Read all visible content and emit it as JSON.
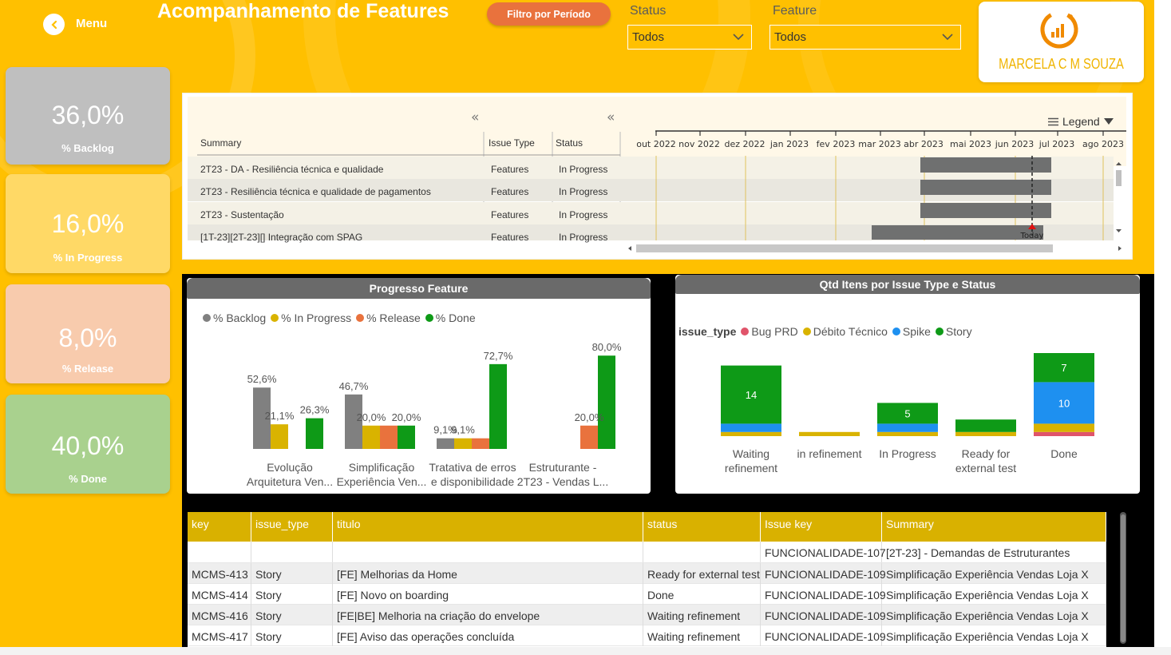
{
  "header": {
    "menu_label": "Menu",
    "title": "Acompanhamento de Features",
    "filter_button": "Filtro por Período",
    "slicers": [
      {
        "label": "Status",
        "value": "Todos"
      },
      {
        "label": "Feature",
        "value": "Todos"
      }
    ],
    "logo_text": "MARCELA C M SOUZA"
  },
  "kpis": [
    {
      "value": "36,0%",
      "label": "% Backlog",
      "color": "#BFBFBF"
    },
    {
      "value": "16,0%",
      "label": "% In Progress",
      "color": "#FFD966"
    },
    {
      "value": "8,0%",
      "label": "% Release",
      "color": "#F8CBAD"
    },
    {
      "value": "40,0%",
      "label": "% Done",
      "color": "#A9D18E"
    }
  ],
  "gantt": {
    "columns": [
      "Summary",
      "Issue Type",
      "Status"
    ],
    "legend_label": "Legend",
    "months": [
      "out 2022",
      "nov 2022",
      "dez 2022",
      "jan 2023",
      "fev 2023",
      "mar 2023",
      "abr 2023",
      "mai 2023",
      "jun 2023",
      "jul 2023",
      "ago 2023"
    ],
    "today_label": "Today",
    "rows": [
      {
        "summary": "2T23 - DA - Resiliência técnica e qualidade",
        "issue_type": "Features",
        "status": "In Progress"
      },
      {
        "summary": "2T23 - Resiliência técnica e qualidade de pagamentos",
        "issue_type": "Features",
        "status": "In Progress"
      },
      {
        "summary": "2T23 - Sustentação",
        "issue_type": "Features",
        "status": "In Progress"
      },
      {
        "summary": "[1T-23][2T-23][] Integração com SPAG",
        "issue_type": "Features",
        "status": "In Progress"
      }
    ]
  },
  "progress_chart": {
    "title": "Progresso Feature",
    "chart_data": {
      "type": "bar",
      "categories": [
        "Evolução Arquitetura Ven...",
        "Simplificação Experiência Ven...",
        "Tratativa de erros e disponibilidade",
        "Estruturante - 2T23 - Vendas L..."
      ],
      "category_lines": [
        [
          "Evolução",
          "Arquitetura Ven..."
        ],
        [
          "Simplificação",
          "Experiência Ven..."
        ],
        [
          "Tratativa de erros",
          "e disponibilidade"
        ],
        [
          "Estruturante -",
          "2T23 - Vendas L..."
        ]
      ],
      "series": [
        {
          "name": "% Backlog",
          "color": "#808080",
          "values": [
            52.6,
            46.7,
            9.1,
            null
          ],
          "labels": [
            "52,6%",
            "46,7%",
            "9,1%",
            ""
          ]
        },
        {
          "name": "% In Progress",
          "color": "#D9B300",
          "values": [
            21.1,
            20.0,
            9.1,
            null
          ],
          "labels": [
            "21,1%",
            "20,0%",
            "9,1%",
            ""
          ]
        },
        {
          "name": "% Release",
          "color": "#E9723D",
          "values": [
            null,
            20.0,
            9.1,
            20.0
          ],
          "labels": [
            "",
            "",
            "",
            "20,0%"
          ]
        },
        {
          "name": "% Done",
          "color": "#0E9A17",
          "values": [
            26.3,
            20.0,
            72.7,
            80.0
          ],
          "labels": [
            "26,3%",
            "20,0%",
            "72,7%",
            "80,0%"
          ]
        }
      ]
    }
  },
  "status_chart": {
    "title": "Qtd  Itens por Issue Type e Status",
    "legend_title": "issue_type",
    "chart_data": {
      "type": "bar",
      "stacked": true,
      "categories": [
        "Waiting refinement",
        "in refinement",
        "In Progress",
        "Ready for external test",
        "Done"
      ],
      "category_lines": [
        [
          "Waiting",
          "refinement"
        ],
        [
          "in refinement"
        ],
        [
          "In Progress"
        ],
        [
          "Ready for",
          "external test"
        ],
        [
          "Done"
        ]
      ],
      "series": [
        {
          "name": "Bug PRD",
          "color": "#E0546A",
          "values": [
            0,
            0,
            0,
            0,
            1
          ]
        },
        {
          "name": "Débito Técnico",
          "color": "#D9B300",
          "values": [
            1,
            1,
            1,
            1,
            2
          ]
        },
        {
          "name": "Spike",
          "color": "#1E90F0",
          "values": [
            2,
            0,
            2,
            0,
            10
          ]
        },
        {
          "name": "Story",
          "color": "#0E9A17",
          "values": [
            14,
            0,
            5,
            3,
            7
          ]
        }
      ],
      "data_labels": [
        {
          "category": "Waiting refinement",
          "series": "Story",
          "text": "14"
        },
        {
          "category": "In Progress",
          "series": "Story",
          "text": "5"
        },
        {
          "category": "Done",
          "series": "Spike",
          "text": "10"
        },
        {
          "category": "Done",
          "series": "Story",
          "text": "7"
        }
      ]
    }
  },
  "table": {
    "headers": [
      "key",
      "issue_type",
      "titulo",
      "status",
      "Issue key",
      "Summary"
    ],
    "rows": [
      [
        "",
        "",
        "",
        "",
        "FUNCIONALIDADE-107",
        "[2T-23] - Demandas de Estruturantes"
      ],
      [
        "MCMS-413",
        "Story",
        "[FE] Melhorias da Home",
        "Ready for external test",
        "FUNCIONALIDADE-109",
        "Simplificação Experiência Vendas Loja X"
      ],
      [
        "MCMS-414",
        "Story",
        "[FE] Novo on boarding",
        "Done",
        "FUNCIONALIDADE-109",
        "Simplificação Experiência Vendas Loja X"
      ],
      [
        "MCMS-416",
        "Story",
        "[FE|BE] Melhoria na criação do envelope",
        "Waiting refinement",
        "FUNCIONALIDADE-109",
        "Simplificação Experiência Vendas Loja X"
      ],
      [
        "MCMS-417",
        "Story",
        "[FE] Aviso das operações concluída",
        "Waiting refinement",
        "FUNCIONALIDADE-109",
        "Simplificação Experiência Vendas Loja X"
      ]
    ]
  }
}
